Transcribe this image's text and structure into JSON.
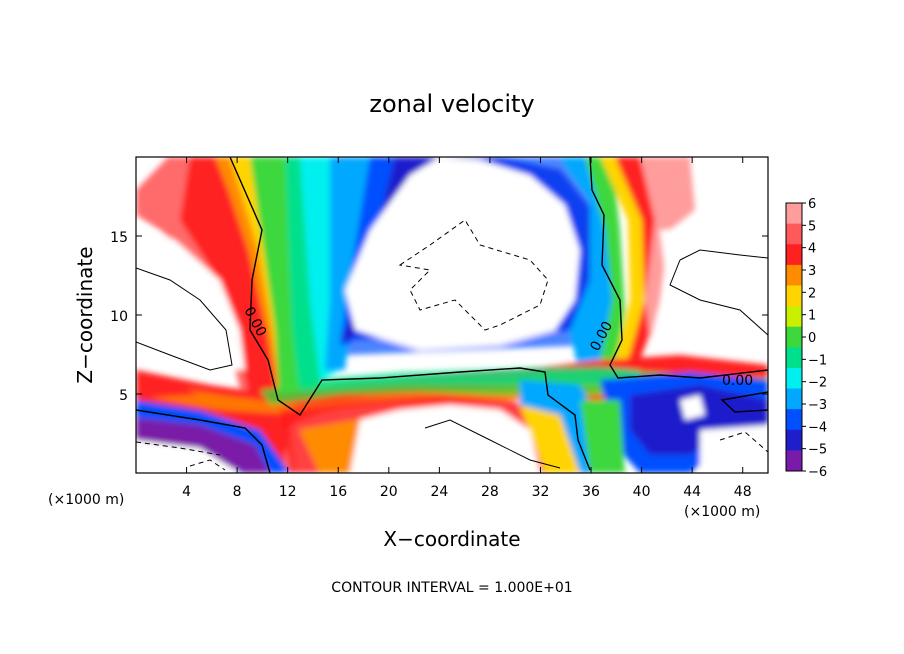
{
  "chart_data": {
    "type": "heatmap",
    "title": "zonal velocity",
    "xlabel": "X−coordinate",
    "ylabel": "Z−coordinate",
    "x_unit": "(×1000 m)",
    "x_unit_right": "(×1000 m)",
    "xlim": [
      0,
      50
    ],
    "ylim": [
      0,
      20
    ],
    "x_ticks": [
      4,
      8,
      12,
      16,
      20,
      24,
      28,
      32,
      36,
      40,
      44,
      48
    ],
    "y_ticks": [
      5,
      10,
      15
    ],
    "colorbar": {
      "levels": [
        6,
        5,
        4,
        3,
        2,
        1,
        0,
        -1,
        -2,
        -3,
        -4,
        -5,
        -6
      ],
      "labels": [
        "6",
        "5",
        "4",
        "3",
        "2",
        "1",
        "0",
        "−1",
        "−2",
        "−3",
        "−4",
        "−5",
        "−6"
      ],
      "colors": [
        "#ff9c9c",
        "#ff5a5a",
        "#ff2020",
        "#ff8c00",
        "#ffd400",
        "#c8f000",
        "#3cd83c",
        "#00e08c",
        "#00f0f0",
        "#00a8ff",
        "#0050ff",
        "#1e1ecc",
        "#7a1aa8"
      ]
    },
    "contour_labels": [
      "0.00",
      "0.00",
      "0.00"
    ],
    "footer": "CONTOUR INTERVAL = 1.000E+01"
  }
}
